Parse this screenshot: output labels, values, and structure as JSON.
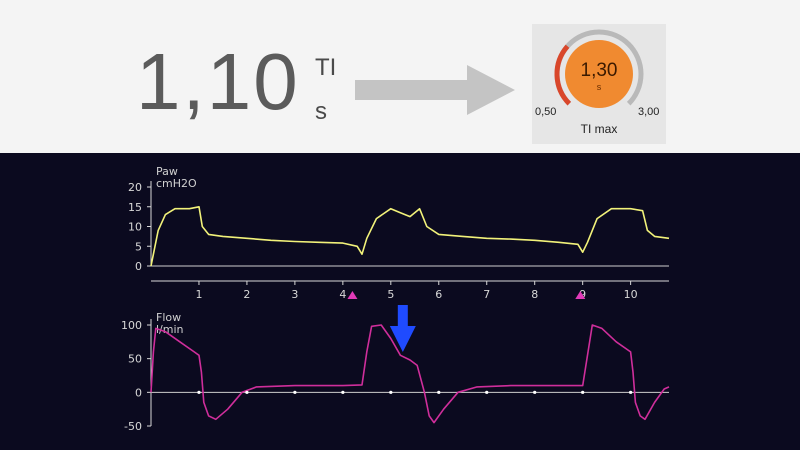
{
  "setting": {
    "current_value": "1,10",
    "name": "TI",
    "unit": "s"
  },
  "knob": {
    "value": "1,30",
    "unit": "s",
    "min": "0,50",
    "max": "3,00",
    "label": "TI max",
    "fraction": 0.32,
    "colors": {
      "fill": "#f08a30",
      "track": "#b9b9b9",
      "accent": "#d9472b"
    }
  },
  "arrow_color": "#c4c4c4",
  "chart_data": [
    {
      "type": "line",
      "title": "Paw",
      "ylabel": "cmH2O",
      "ylim": [
        0,
        20
      ],
      "yticks": [
        0,
        5,
        10,
        15,
        20
      ],
      "xlim": [
        0,
        10.8
      ],
      "xticks": [
        1,
        2,
        3,
        4,
        5,
        6,
        7,
        8,
        9,
        10
      ],
      "color": "#f2f27a",
      "series": [
        {
          "points": [
            [
              0,
              0
            ],
            [
              0.05,
              3
            ],
            [
              0.15,
              9
            ],
            [
              0.3,
              13
            ],
            [
              0.5,
              14.5
            ],
            [
              0.8,
              14.5
            ],
            [
              1.0,
              15
            ],
            [
              1.07,
              10
            ],
            [
              1.2,
              8
            ],
            [
              1.5,
              7.5
            ],
            [
              2.0,
              7
            ],
            [
              2.5,
              6.5
            ],
            [
              3.0,
              6.2
            ],
            [
              3.5,
              6
            ],
            [
              4.0,
              5.8
            ],
            [
              4.3,
              5
            ],
            [
              4.4,
              3
            ],
            [
              4.5,
              7
            ],
            [
              4.7,
              12
            ],
            [
              5.0,
              14.5
            ],
            [
              5.2,
              13.5
            ],
            [
              5.4,
              12.5
            ],
            [
              5.6,
              14.5
            ],
            [
              5.75,
              10
            ],
            [
              6.0,
              8
            ],
            [
              6.5,
              7.5
            ],
            [
              7.0,
              7
            ],
            [
              7.5,
              6.8
            ],
            [
              8.0,
              6.5
            ],
            [
              8.5,
              6
            ],
            [
              8.9,
              5.5
            ],
            [
              9.0,
              3.5
            ],
            [
              9.1,
              6
            ],
            [
              9.3,
              12
            ],
            [
              9.6,
              14.5
            ],
            [
              10.0,
              14.5
            ],
            [
              10.25,
              14
            ],
            [
              10.35,
              9
            ],
            [
              10.5,
              7.5
            ],
            [
              10.8,
              7
            ]
          ]
        }
      ]
    },
    {
      "type": "line",
      "title": "Flow",
      "ylabel": "l/min",
      "ylim": [
        -50,
        100
      ],
      "yticks": [
        -50,
        0,
        50,
        100
      ],
      "xlim": [
        0,
        10.8
      ],
      "color": "#cf2e9b",
      "series": [
        {
          "points": [
            [
              0,
              0
            ],
            [
              0.05,
              60
            ],
            [
              0.1,
              95
            ],
            [
              0.3,
              90
            ],
            [
              0.6,
              75
            ],
            [
              0.9,
              60
            ],
            [
              1.0,
              55
            ],
            [
              1.05,
              30
            ],
            [
              1.1,
              -15
            ],
            [
              1.2,
              -35
            ],
            [
              1.35,
              -40
            ],
            [
              1.6,
              -25
            ],
            [
              1.9,
              0
            ],
            [
              2.2,
              8
            ],
            [
              3.0,
              10
            ],
            [
              4.0,
              10
            ],
            [
              4.4,
              11
            ],
            [
              4.5,
              60
            ],
            [
              4.6,
              98
            ],
            [
              4.8,
              100
            ],
            [
              5.0,
              80
            ],
            [
              5.2,
              55
            ],
            [
              5.4,
              48
            ],
            [
              5.55,
              40
            ],
            [
              5.7,
              0
            ],
            [
              5.8,
              -35
            ],
            [
              5.9,
              -45
            ],
            [
              6.1,
              -25
            ],
            [
              6.4,
              0
            ],
            [
              6.8,
              8
            ],
            [
              7.5,
              10
            ],
            [
              8.5,
              10
            ],
            [
              9.0,
              10
            ],
            [
              9.1,
              55
            ],
            [
              9.2,
              100
            ],
            [
              9.4,
              95
            ],
            [
              9.7,
              75
            ],
            [
              10.0,
              60
            ],
            [
              10.05,
              30
            ],
            [
              10.1,
              -15
            ],
            [
              10.2,
              -35
            ],
            [
              10.3,
              -40
            ],
            [
              10.5,
              -15
            ],
            [
              10.7,
              5
            ],
            [
              10.8,
              8
            ]
          ]
        }
      ]
    }
  ],
  "markers": {
    "triangle_x": [
      4.2,
      8.95
    ],
    "triangle_color": "#e03ab8",
    "dot_x": [
      1,
      2,
      3,
      4,
      5,
      6,
      7,
      8,
      9,
      10
    ],
    "blue_arrow_x": 5.25,
    "blue_arrow_color": "#1f4bff"
  }
}
